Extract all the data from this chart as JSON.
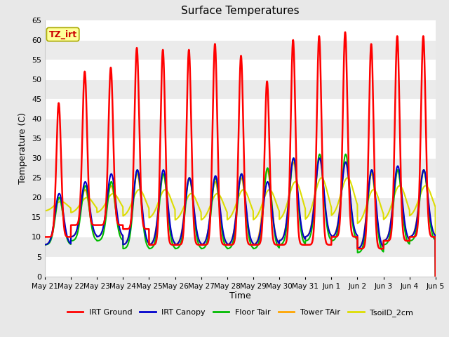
{
  "title": "Surface Temperatures",
  "ylabel": "Temperature (C)",
  "xlabel": "Time",
  "ylim": [
    0,
    65
  ],
  "yticks": [
    0,
    5,
    10,
    15,
    20,
    25,
    30,
    35,
    40,
    45,
    50,
    55,
    60,
    65
  ],
  "x_labels": [
    "May 21",
    "May 22",
    "May 23",
    "May 24",
    "May 25",
    "May 26",
    "May 27",
    "May 28",
    "May 29",
    "May 30",
    "May 31",
    "Jun 1",
    "Jun 2",
    "Jun 3",
    "Jun 4",
    "Jun 5"
  ],
  "fig_bg_color": "#e8e8e8",
  "plot_bg_color": "#f0f0f0",
  "grid_color": "#ffffff",
  "legend": [
    {
      "label": "IRT Ground",
      "color": "#ff0000"
    },
    {
      "label": "IRT Canopy",
      "color": "#0000cc"
    },
    {
      "label": "Floor Tair",
      "color": "#00bb00"
    },
    {
      "label": "Tower TAir",
      "color": "#ffa500"
    },
    {
      "label": "TsoilD_2cm",
      "color": "#dddd00"
    }
  ],
  "annotation_text": "TZ_irt",
  "annotation_color": "#cc0000",
  "annotation_bg": "#ffff99",
  "n_days": 15,
  "pts_per_day": 144,
  "irt_ground_peaks": [
    44,
    52,
    53,
    58,
    57.5,
    57.5,
    59,
    56,
    49.5,
    60,
    61,
    62,
    59,
    61,
    61
  ],
  "irt_ground_mins": [
    10,
    13,
    13,
    12,
    8,
    8,
    8,
    8,
    8,
    8,
    8,
    10,
    7,
    9,
    10
  ],
  "canopy_peaks": [
    21,
    24,
    26,
    27,
    27,
    25,
    25.5,
    26,
    24,
    30,
    30,
    29,
    27,
    28,
    27
  ],
  "canopy_mins": [
    8,
    10,
    10,
    8,
    8,
    8,
    8,
    8,
    8,
    9,
    10,
    10,
    7,
    9,
    10
  ],
  "floor_peaks": [
    20,
    23,
    24,
    27,
    26,
    25,
    25,
    26,
    27.5,
    30,
    31,
    31,
    27,
    27,
    27
  ],
  "floor_mins": [
    8,
    9,
    9,
    7,
    7,
    7,
    7,
    7,
    7,
    8,
    9,
    9,
    6,
    8,
    9
  ],
  "tower_peaks": [
    20,
    22,
    23,
    26,
    26,
    25,
    24,
    25,
    27,
    29,
    30,
    29,
    26,
    27,
    27
  ],
  "tower_mins": [
    8,
    10,
    10,
    8,
    8,
    8,
    8,
    8,
    8,
    9,
    10,
    10,
    7,
    9,
    10
  ],
  "tsoil_peaks": [
    19,
    20,
    21,
    22,
    22,
    21,
    21,
    22,
    22,
    24,
    25,
    25,
    22,
    23,
    23
  ],
  "tsoil_mins": [
    16.5,
    16,
    16,
    15,
    14.5,
    14,
    14,
    14,
    14,
    14,
    14,
    15,
    13,
    14,
    15
  ]
}
